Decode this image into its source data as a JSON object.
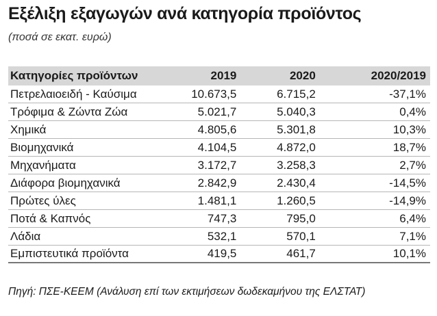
{
  "title": "Εξέλιξη εξαγωγών ανά κατηγορία προϊόντος",
  "subtitle": "(ποσά σε εκατ. ευρώ)",
  "table": {
    "headers": [
      "Κατηγορίες προϊόντων",
      "2019",
      "2020",
      "2020/2019"
    ],
    "rows": [
      [
        "Πετρελαιοειδή - Καύσιμα",
        "10.673,5",
        "6.715,2",
        "-37,1%"
      ],
      [
        "Τρόφιμα & Ζώντα Ζώα",
        "5.021,7",
        "5.040,3",
        "0,4%"
      ],
      [
        "Χημικά",
        "4.805,6",
        "5.301,8",
        "10,3%"
      ],
      [
        "Βιομηχανικά",
        "4.104,5",
        "4.872,0",
        "18,7%"
      ],
      [
        "Μηχανήματα",
        "3.172,7",
        "3.258,3",
        "2,7%"
      ],
      [
        "Διάφορα βιομηχανικά",
        "2.842,9",
        "2.430,4",
        "-14,5%"
      ],
      [
        "Πρώτες ύλες",
        "1.481,1",
        "1.260,5",
        "-14,9%"
      ],
      [
        "Ποτά & Καπνός",
        "747,3",
        "795,0",
        "6,4%"
      ],
      [
        "Λάδια",
        "532,1",
        "570,1",
        "7,1%"
      ],
      [
        "Εμπιστευτικά προϊόντα",
        "419,5",
        "461,7",
        "10,1%"
      ]
    ]
  },
  "source": "Πηγή: ΠΣΕ-ΚΕΕΜ (Ανάλυση επί των εκτιμήσεων δωδεκαμήνου της ΕΛΣΤΑΤ)"
}
